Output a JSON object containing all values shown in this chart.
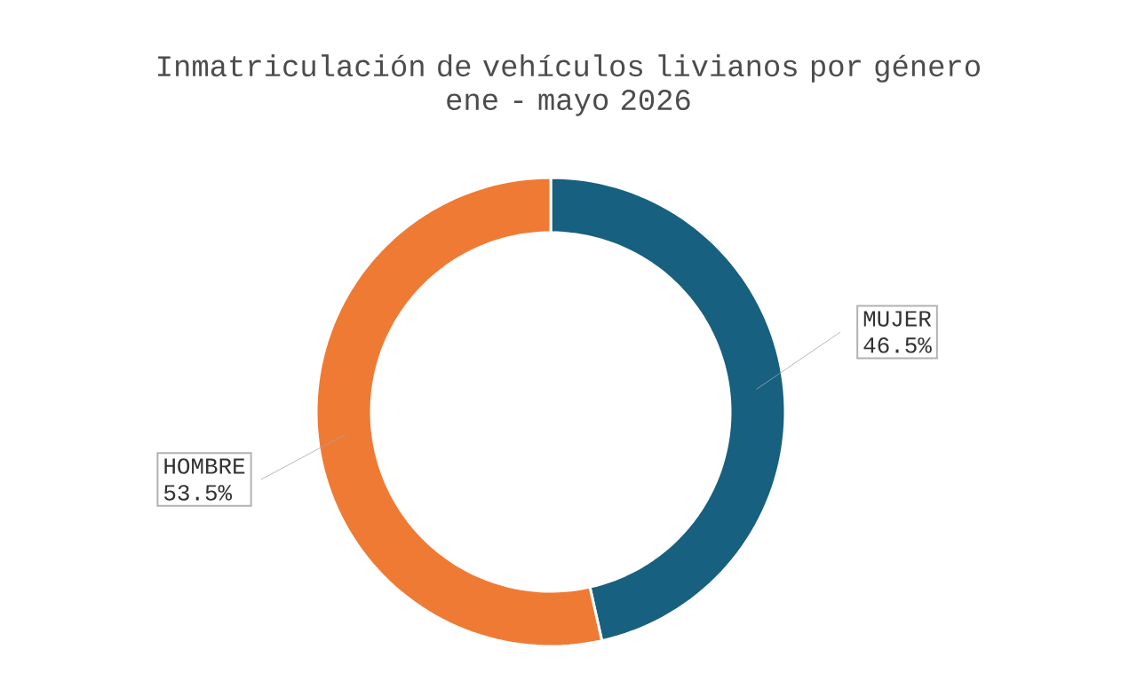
{
  "chart_data": {
    "type": "donut",
    "title": "Inmatriculación de vehículos livianos por género",
    "subtitle": "ene - mayo 2026",
    "categories": [
      "MUJER",
      "HOMBRE"
    ],
    "values": [
      46.5,
      53.5
    ],
    "colors": [
      "#17607f",
      "#ef7a34"
    ],
    "value_labels": [
      "46.5%",
      "53.5%"
    ]
  }
}
